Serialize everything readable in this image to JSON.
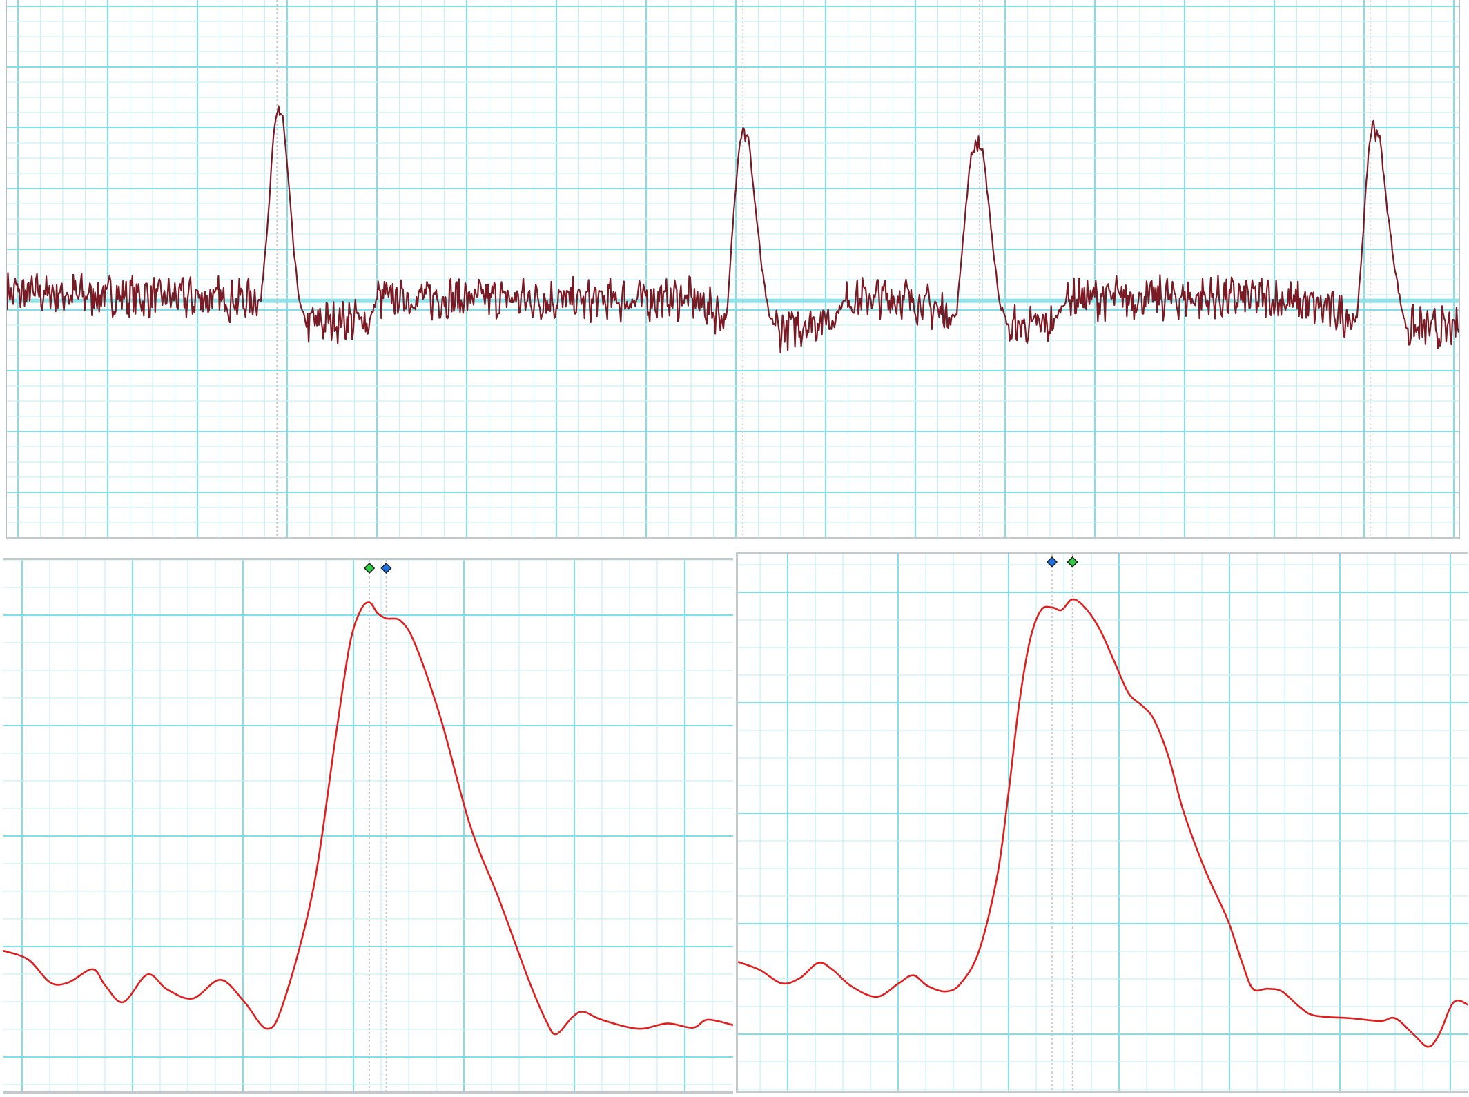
{
  "colors": {
    "grid_major": "#7fe0ea",
    "grid_minor": "#c6f1f5",
    "baseline": "#8fe3e8",
    "trace_top": "#7a1a24",
    "trace_zoom": "#e01e1e",
    "cursor_line": "#c8c8c8",
    "marker_green": "#2ecc40",
    "marker_blue": "#1f6fe0"
  },
  "chart_data": [
    {
      "type": "line",
      "panel": "top",
      "title": "",
      "xlabel": "",
      "ylabel": "",
      "grid": true,
      "xlim": [
        0,
        100
      ],
      "ylim": [
        0,
        100
      ],
      "baseline": 44,
      "noise_amplitude": 3.2,
      "cursor_x": [
        18.6,
        50.7,
        67.0,
        93.9
      ],
      "series": [
        {
          "points": [
            [
              0,
              45.5
            ],
            [
              17.0,
              44.2
            ],
            [
              17.5,
              44.0
            ],
            [
              18.0,
              60.0
            ],
            [
              18.4,
              76.0
            ],
            [
              18.7,
              79.5
            ],
            [
              19.0,
              78.5
            ],
            [
              19.4,
              66.0
            ],
            [
              19.8,
              52.0
            ],
            [
              20.2,
              43.0
            ],
            [
              20.6,
              40.0
            ],
            [
              25.0,
              40.5
            ],
            [
              25.5,
              44.5
            ],
            [
              32.0,
              44.5
            ],
            [
              40.0,
              44.0
            ],
            [
              47.0,
              44.5
            ],
            [
              49.6,
              41.0
            ],
            [
              50.0,
              58.0
            ],
            [
              50.4,
              72.0
            ],
            [
              50.7,
              76.5
            ],
            [
              51.1,
              74.0
            ],
            [
              51.5,
              63.0
            ],
            [
              52.0,
              50.0
            ],
            [
              52.5,
              41.0
            ],
            [
              53.2,
              38.5
            ],
            [
              57.0,
              41.0
            ],
            [
              57.8,
              44.5
            ],
            [
              62.0,
              44.5
            ],
            [
              65.4,
              41.0
            ],
            [
              66.0,
              60.0
            ],
            [
              66.4,
              71.0
            ],
            [
              66.8,
              73.0
            ],
            [
              67.2,
              72.0
            ],
            [
              67.6,
              63.0
            ],
            [
              68.0,
              52.0
            ],
            [
              68.4,
              43.5
            ],
            [
              69.0,
              39.0
            ],
            [
              72.0,
              39.5
            ],
            [
              73.0,
              44.5
            ],
            [
              80.0,
              44.5
            ],
            [
              87.0,
              44.5
            ],
            [
              91.0,
              42.5
            ],
            [
              93.0,
              40.5
            ],
            [
              93.4,
              56.0
            ],
            [
              93.8,
              72.0
            ],
            [
              94.1,
              77.5
            ],
            [
              94.6,
              74.0
            ],
            [
              95.0,
              63.0
            ],
            [
              95.5,
              52.0
            ],
            [
              96.0,
              43.5
            ],
            [
              96.4,
              39.0
            ],
            [
              100,
              38.5
            ]
          ]
        }
      ]
    },
    {
      "type": "line",
      "panel": "bottom-left",
      "title": "",
      "xlabel": "",
      "ylabel": "",
      "grid": true,
      "xlim": [
        0,
        100
      ],
      "ylim": [
        0,
        100
      ],
      "cursor_x": [
        50.2,
        52.5
      ],
      "markers": [
        {
          "x": 50.2,
          "color": "marker_green"
        },
        {
          "x": 52.5,
          "color": "marker_blue"
        }
      ],
      "series": [
        {
          "points": [
            [
              0,
              26.5
            ],
            [
              3.5,
              24.8
            ],
            [
              6.5,
              20.5
            ],
            [
              9.0,
              20.5
            ],
            [
              12.3,
              23.0
            ],
            [
              14.0,
              20.0
            ],
            [
              16.5,
              16.8
            ],
            [
              19.8,
              22.0
            ],
            [
              22.5,
              19.2
            ],
            [
              26.0,
              17.5
            ],
            [
              29.8,
              21.0
            ],
            [
              33.0,
              17.0
            ],
            [
              36.2,
              11.8
            ],
            [
              38.5,
              17.0
            ],
            [
              42.5,
              38.0
            ],
            [
              45.5,
              66.0
            ],
            [
              47.5,
              84.0
            ],
            [
              49.0,
              90.5
            ],
            [
              50.2,
              92.0
            ],
            [
              51.3,
              90.0
            ],
            [
              52.5,
              89.0
            ],
            [
              54.5,
              88.5
            ],
            [
              56.5,
              84.0
            ],
            [
              60.0,
              70.0
            ],
            [
              64.0,
              50.0
            ],
            [
              68.0,
              36.0
            ],
            [
              72.0,
              21.0
            ],
            [
              74.5,
              13.0
            ],
            [
              75.8,
              10.8
            ],
            [
              78.0,
              14.0
            ],
            [
              79.5,
              15.0
            ],
            [
              82.0,
              13.5
            ],
            [
              87.0,
              11.8
            ],
            [
              91.0,
              12.8
            ],
            [
              94.5,
              12.0
            ],
            [
              96.5,
              13.5
            ],
            [
              100,
              12.5
            ]
          ]
        }
      ]
    },
    {
      "type": "line",
      "panel": "bottom-right",
      "title": "",
      "xlabel": "",
      "ylabel": "",
      "grid": true,
      "xlim": [
        0,
        100
      ],
      "ylim": [
        0,
        100
      ],
      "cursor_x": [
        43.0,
        45.8
      ],
      "markers": [
        {
          "x": 43.0,
          "color": "marker_blue"
        },
        {
          "x": 45.8,
          "color": "marker_green"
        }
      ],
      "series": [
        {
          "points": [
            [
              0,
              24.0
            ],
            [
              3.0,
              22.5
            ],
            [
              6.0,
              20.0
            ],
            [
              8.5,
              21.0
            ],
            [
              11.0,
              23.8
            ],
            [
              13.0,
              22.5
            ],
            [
              15.5,
              19.5
            ],
            [
              19.0,
              17.5
            ],
            [
              22.0,
              20.0
            ],
            [
              24.0,
              21.5
            ],
            [
              26.0,
              19.5
            ],
            [
              28.5,
              18.5
            ],
            [
              30.5,
              20.0
            ],
            [
              33.0,
              26.0
            ],
            [
              35.5,
              40.0
            ],
            [
              37.0,
              55.0
            ],
            [
              38.5,
              72.0
            ],
            [
              40.0,
              84.0
            ],
            [
              41.5,
              89.5
            ],
            [
              43.0,
              90.0
            ],
            [
              44.3,
              89.5
            ],
            [
              45.8,
              91.5
            ],
            [
              47.5,
              90.0
            ],
            [
              49.5,
              86.0
            ],
            [
              51.5,
              80.0
            ],
            [
              53.5,
              74.0
            ],
            [
              55.5,
              71.5
            ],
            [
              57.0,
              69.0
            ],
            [
              59.0,
              62.0
            ],
            [
              61.0,
              52.0
            ],
            [
              64.0,
              41.0
            ],
            [
              67.0,
              32.0
            ],
            [
              69.0,
              24.0
            ],
            [
              70.5,
              19.0
            ],
            [
              72.5,
              19.0
            ],
            [
              74.5,
              18.5
            ],
            [
              77.0,
              15.5
            ],
            [
              79.0,
              14.0
            ],
            [
              84.0,
              13.5
            ],
            [
              88.0,
              13.0
            ],
            [
              90.0,
              13.5
            ],
            [
              92.5,
              10.5
            ],
            [
              94.5,
              8.2
            ],
            [
              96.0,
              10.5
            ],
            [
              98.0,
              16.5
            ],
            [
              100,
              16.0
            ]
          ]
        }
      ]
    }
  ]
}
